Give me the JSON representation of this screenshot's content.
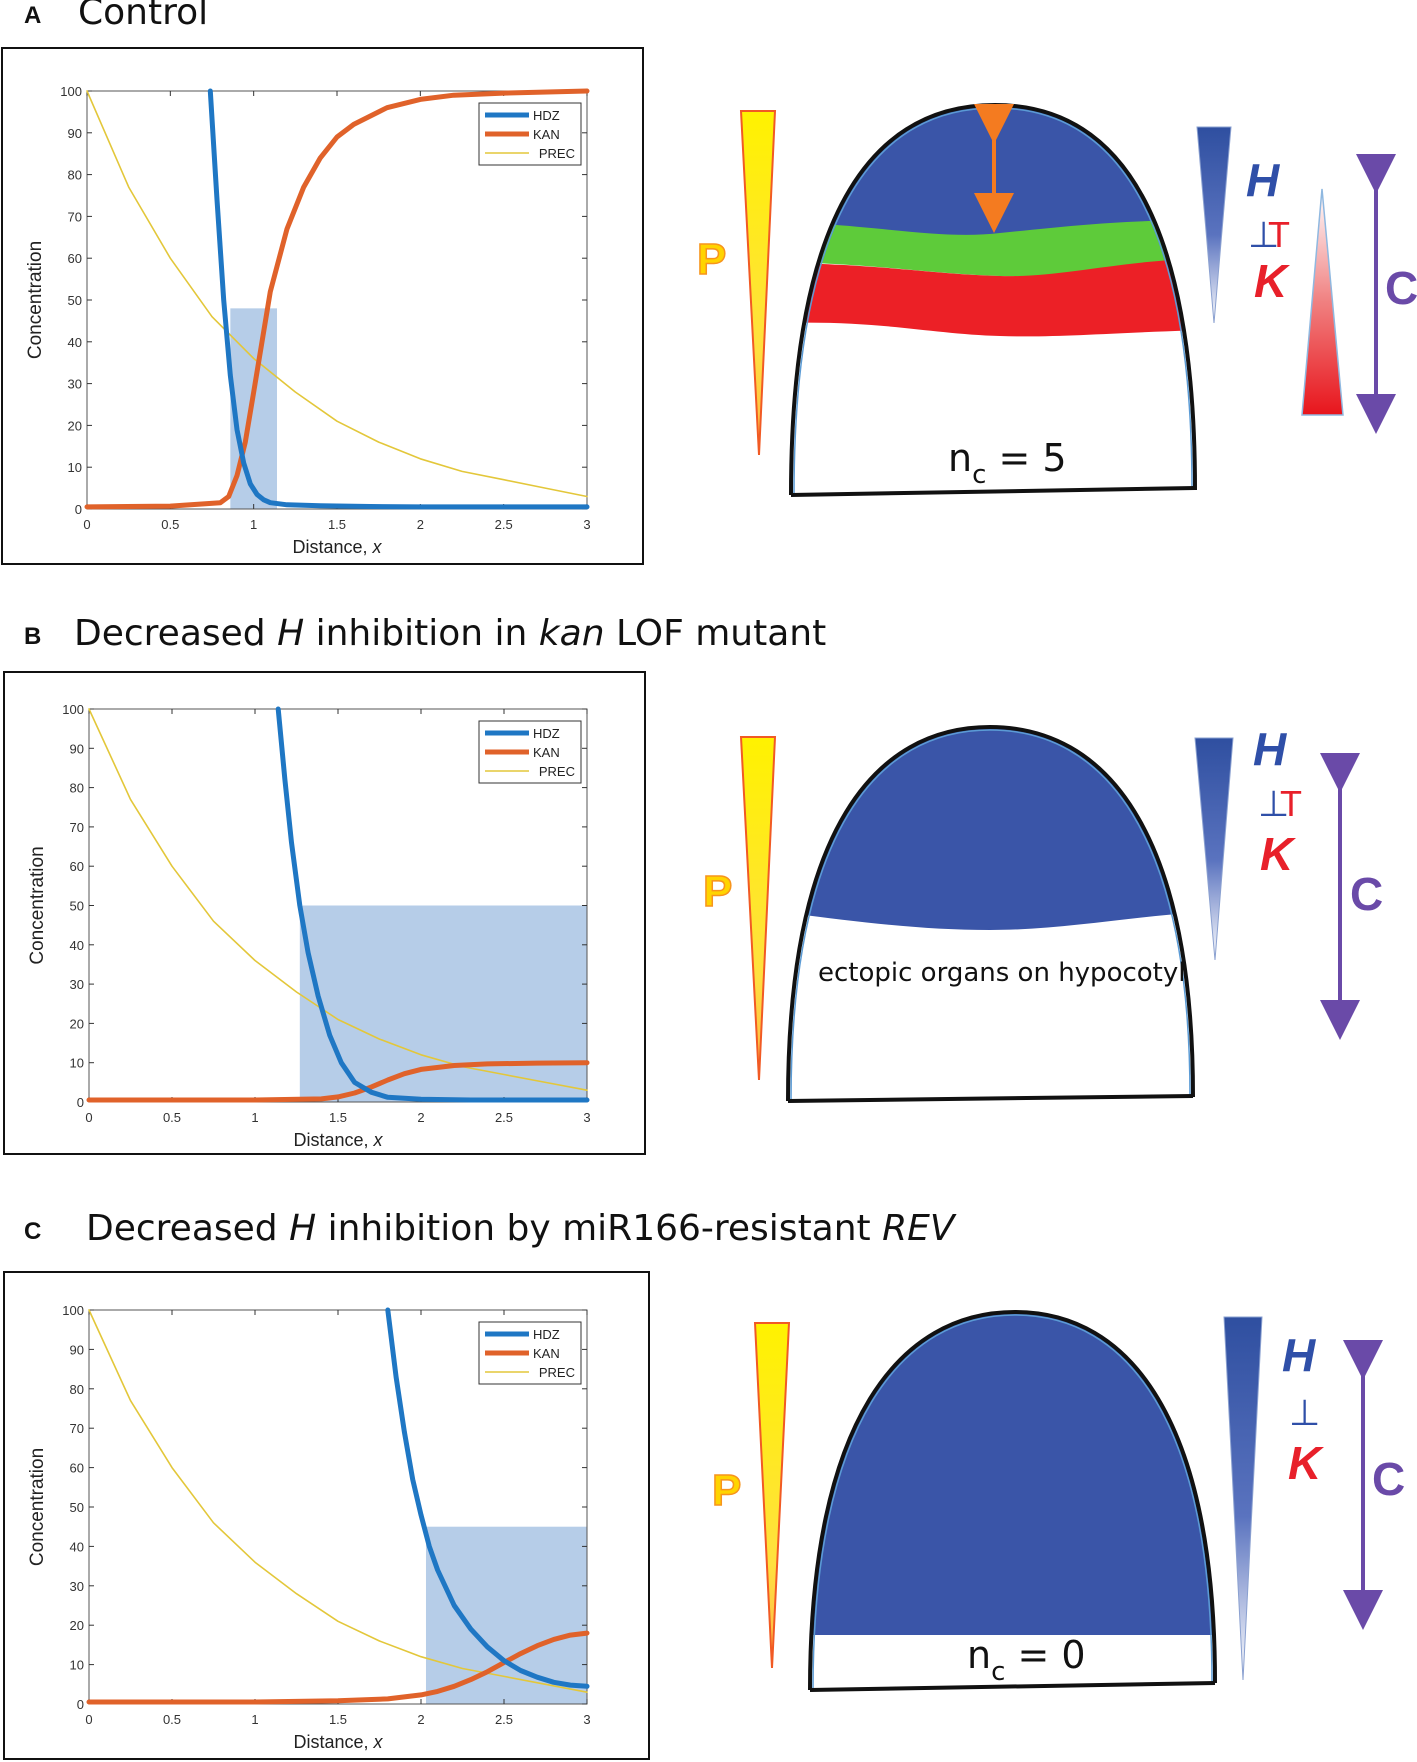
{
  "panels": [
    {
      "letter": "A",
      "title_parts": [
        "Control"
      ],
      "title_italic": [
        false
      ],
      "nc_label": "n",
      "nc_sub": "c",
      "nc_eq": " = 5",
      "diagram_text": "",
      "p_label": "P",
      "h_label": "H",
      "inh_symbol": "⊥",
      "t_label": "T",
      "k_label": "K",
      "c_label": "C"
    },
    {
      "letter": "B",
      "title_parts": [
        "Decreased ",
        "H",
        " inhibition in ",
        "kan",
        " LOF mutant"
      ],
      "title_italic": [
        false,
        true,
        false,
        true,
        false
      ],
      "nc_label": "",
      "nc_sub": "",
      "nc_eq": "",
      "diagram_text": "ectopic organs on hypocotyl",
      "p_label": "P",
      "h_label": "H",
      "inh_symbol": "⊥",
      "t_label": "T",
      "k_label": "K",
      "c_label": "C"
    },
    {
      "letter": "C",
      "title_parts": [
        "Decreased ",
        "H",
        " inhibition by miR166-resistant ",
        "REV"
      ],
      "title_italic": [
        false,
        true,
        false,
        true
      ],
      "nc_label": "n",
      "nc_sub": "c",
      "nc_eq": " = 0",
      "diagram_text": "",
      "p_label": "P",
      "h_label": "H",
      "inh_symbol": "⊥",
      "t_label": "",
      "k_label": "K",
      "c_label": "C"
    }
  ],
  "colors": {
    "hdz": "#1f77c4",
    "kan": "#e0622a",
    "prec": "#e3c73a",
    "shade": "#a9c4e4",
    "blue_region": "#3a55a8",
    "green_region": "#5ecb3a",
    "red_region": "#ec2026",
    "yellow": "#fff200",
    "orange": "#f47b20",
    "purple": "#6a4aa8",
    "h_text": "#2f4fa8",
    "k_text": "#e8202a"
  },
  "chart_data": [
    {
      "type": "line",
      "xlabel": "Distance, ",
      "xlabel_var": "x",
      "ylabel": "Concentration",
      "xlim": [
        0,
        3
      ],
      "ylim": [
        0,
        100
      ],
      "xticks": [
        0,
        0.5,
        1,
        1.5,
        2,
        2.5,
        3
      ],
      "xtick_labels": [
        "0",
        "0.5",
        "1",
        "1.5",
        "2",
        "2.5",
        "3"
      ],
      "yticks": [
        0,
        10,
        20,
        30,
        40,
        50,
        60,
        70,
        80,
        90,
        100
      ],
      "ytick_labels": [
        "0",
        "10",
        "20",
        "30",
        "40",
        "50",
        "60",
        "70",
        "80",
        "90",
        "100"
      ],
      "legend": [
        "HDZ",
        "KAN",
        "PREC"
      ],
      "legend_position": "top-right",
      "shaded_region": {
        "x": [
          0.86,
          1.14
        ],
        "y": [
          0,
          48
        ]
      },
      "series": [
        {
          "name": "HDZ",
          "x": [
            0.74,
            0.78,
            0.82,
            0.86,
            0.9,
            0.94,
            0.98,
            1.02,
            1.06,
            1.1,
            1.2,
            1.4,
            1.7,
            2.0,
            2.5,
            3.0
          ],
          "y": [
            100,
            74,
            50,
            32,
            19,
            11,
            6,
            3.5,
            2.2,
            1.5,
            1,
            0.8,
            0.6,
            0.5,
            0.5,
            0.5
          ]
        },
        {
          "name": "KAN",
          "x": [
            0,
            0.5,
            0.8,
            0.85,
            0.9,
            0.95,
            1.0,
            1.05,
            1.1,
            1.2,
            1.3,
            1.4,
            1.5,
            1.6,
            1.8,
            2.0,
            2.2,
            2.5,
            3.0
          ],
          "y": [
            0.5,
            0.7,
            1.5,
            3,
            8,
            16,
            28,
            40,
            52,
            67,
            77,
            84,
            89,
            92,
            96,
            98,
            99,
            99.5,
            100
          ]
        },
        {
          "name": "PREC",
          "x": [
            0,
            0.25,
            0.5,
            0.75,
            1.0,
            1.25,
            1.5,
            1.75,
            2.0,
            2.25,
            2.5,
            2.75,
            3.0
          ],
          "y": [
            100,
            77,
            60,
            46,
            36,
            28,
            21,
            16,
            12,
            9,
            7,
            5,
            3
          ]
        }
      ]
    },
    {
      "type": "line",
      "xlabel": "Distance, ",
      "xlabel_var": "x",
      "ylabel": "Concentration",
      "xlim": [
        0,
        3
      ],
      "ylim": [
        0,
        100
      ],
      "xticks": [
        0,
        0.5,
        1,
        1.5,
        2,
        2.5,
        3
      ],
      "xtick_labels": [
        "0",
        "0.5",
        "1",
        "1.5",
        "2",
        "2.5",
        "3"
      ],
      "yticks": [
        0,
        10,
        20,
        30,
        40,
        50,
        60,
        70,
        80,
        90,
        100
      ],
      "ytick_labels": [
        "0",
        "10",
        "20",
        "30",
        "40",
        "50",
        "60",
        "70",
        "80",
        "90",
        "100"
      ],
      "legend": [
        "HDZ",
        "KAN",
        "PREC"
      ],
      "legend_position": "top-right",
      "shaded_region": {
        "x": [
          1.27,
          3.0
        ],
        "y": [
          0,
          50
        ]
      },
      "series": [
        {
          "name": "HDZ",
          "x": [
            1.14,
            1.18,
            1.22,
            1.27,
            1.32,
            1.38,
            1.45,
            1.52,
            1.6,
            1.7,
            1.8,
            2.0,
            2.3,
            2.6,
            3.0
          ],
          "y": [
            100,
            82,
            66,
            50,
            38,
            27,
            17,
            10,
            5,
            2.5,
            1.2,
            0.7,
            0.5,
            0.5,
            0.5
          ]
        },
        {
          "name": "KAN",
          "x": [
            0,
            1.0,
            1.4,
            1.5,
            1.6,
            1.7,
            1.8,
            1.9,
            2.0,
            2.2,
            2.4,
            2.7,
            3.0
          ],
          "y": [
            0.5,
            0.5,
            0.8,
            1.3,
            2.3,
            3.8,
            5.6,
            7.2,
            8.3,
            9.3,
            9.7,
            9.9,
            10
          ]
        },
        {
          "name": "PREC",
          "x": [
            0,
            0.25,
            0.5,
            0.75,
            1.0,
            1.25,
            1.5,
            1.75,
            2.0,
            2.25,
            2.5,
            2.75,
            3.0
          ],
          "y": [
            100,
            77,
            60,
            46,
            36,
            28,
            21,
            16,
            12,
            9,
            7,
            5,
            3
          ]
        }
      ]
    },
    {
      "type": "line",
      "xlabel": "Distance, ",
      "xlabel_var": "x",
      "ylabel": "Concentration",
      "xlim": [
        0,
        3
      ],
      "ylim": [
        0,
        100
      ],
      "xticks": [
        0,
        0.5,
        1,
        1.5,
        2,
        2.5,
        3
      ],
      "xtick_labels": [
        "0",
        "0.5",
        "1",
        "1.5",
        "2",
        "2.5",
        "3"
      ],
      "yticks": [
        0,
        10,
        20,
        30,
        40,
        50,
        60,
        70,
        80,
        90,
        100
      ],
      "ytick_labels": [
        "0",
        "10",
        "20",
        "30",
        "40",
        "50",
        "60",
        "70",
        "80",
        "90",
        "100"
      ],
      "legend": [
        "HDZ",
        "KAN",
        "PREC"
      ],
      "legend_position": "top-right",
      "shaded_region": {
        "x": [
          2.03,
          3.0
        ],
        "y": [
          0,
          45
        ]
      },
      "series": [
        {
          "name": "HDZ",
          "x": [
            1.8,
            1.85,
            1.9,
            1.95,
            2.0,
            2.05,
            2.1,
            2.2,
            2.3,
            2.4,
            2.5,
            2.6,
            2.7,
            2.8,
            2.9,
            3.0
          ],
          "y": [
            100,
            83,
            69,
            57,
            48,
            40,
            34,
            25,
            19,
            14.5,
            11,
            8.5,
            6.8,
            5.5,
            4.8,
            4.5
          ]
        },
        {
          "name": "KAN",
          "x": [
            0,
            1.0,
            1.5,
            1.8,
            2.0,
            2.1,
            2.2,
            2.3,
            2.4,
            2.5,
            2.6,
            2.7,
            2.8,
            2.9,
            3.0
          ],
          "y": [
            0.5,
            0.5,
            0.8,
            1.3,
            2.3,
            3.2,
            4.5,
            6.2,
            8.2,
            10.5,
            12.8,
            14.8,
            16.4,
            17.5,
            18
          ]
        },
        {
          "name": "PREC",
          "x": [
            0,
            0.25,
            0.5,
            0.75,
            1.0,
            1.25,
            1.5,
            1.75,
            2.0,
            2.25,
            2.5,
            2.75,
            3.0
          ],
          "y": [
            100,
            77,
            60,
            46,
            36,
            28,
            21,
            16,
            12,
            9,
            7,
            5,
            3
          ]
        }
      ]
    }
  ]
}
